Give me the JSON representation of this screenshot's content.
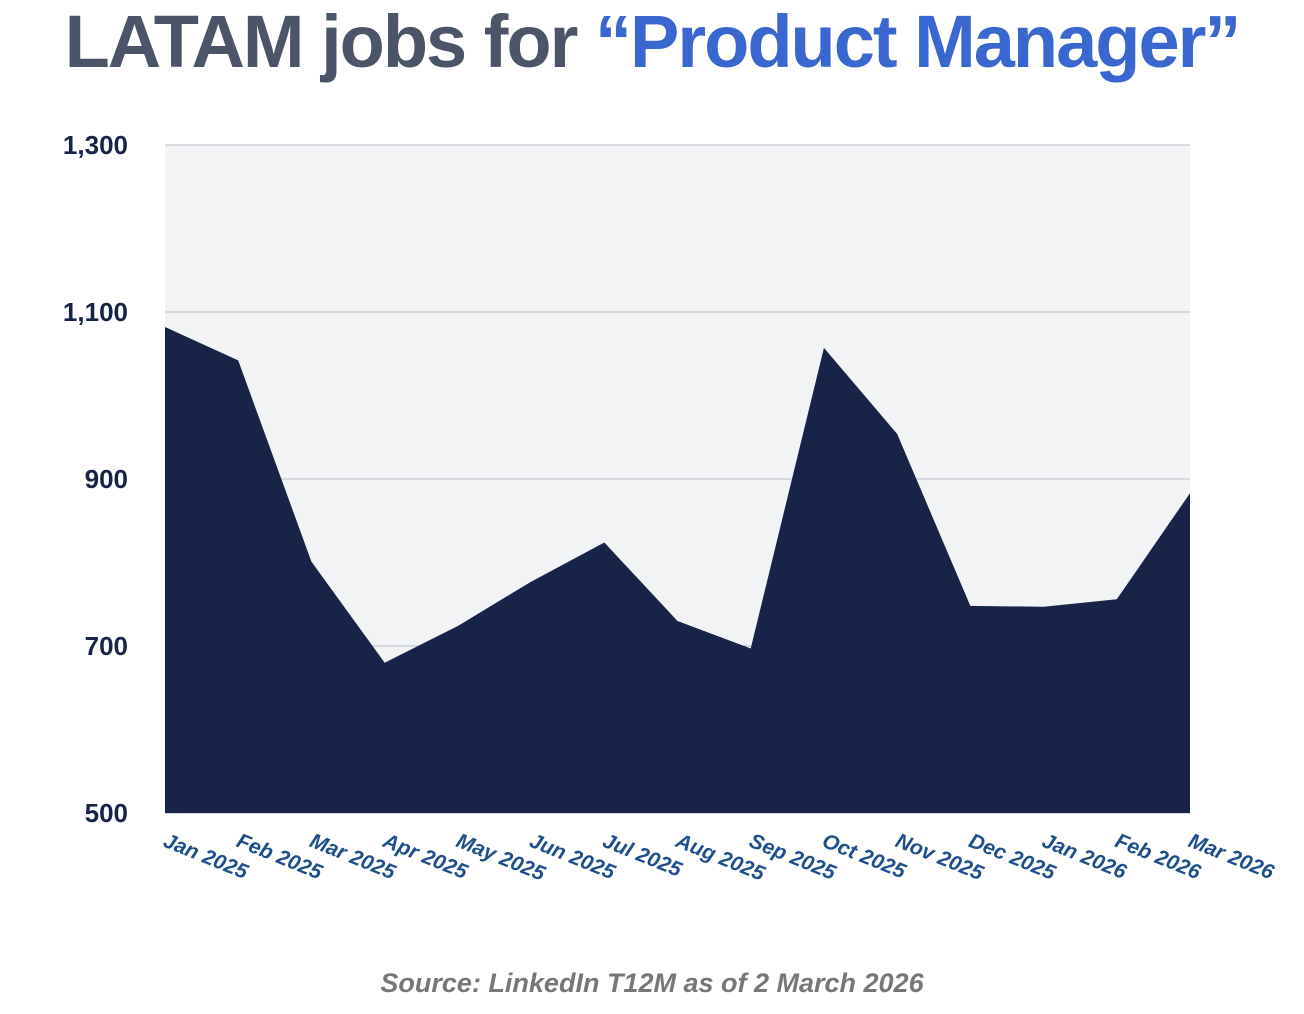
{
  "title": {
    "prefix": "LATAM jobs for ",
    "open_quote": "“",
    "highlight": "Product Manager",
    "close_quote": "”"
  },
  "source": "Source: LinkedIn T12M as of 2 March 2026",
  "colors": {
    "title_text": "#4b5567",
    "title_highlight": "#3a66cf",
    "area_fill": "#172447",
    "plot_background": "#f2f3f5",
    "gridline": "#c4c8cf",
    "y_tick_text": "#172447",
    "x_tick_text": "#1f4e8c",
    "source_text": "#777777"
  },
  "chart_data": {
    "type": "area",
    "title": "LATAM jobs for “Product Manager”",
    "xlabel": "",
    "ylabel": "",
    "categories": [
      "Jan 2025",
      "Feb 2025",
      "Mar 2025",
      "Apr 2025",
      "May 2025",
      "Jun 2025",
      "Jul 2025",
      "Aug 2025",
      "Sep 2025",
      "Oct 2025",
      "Nov 2025",
      "Dec 2025",
      "Jan 2026",
      "Feb 2026",
      "Mar 2026"
    ],
    "values": [
      1082,
      1042,
      801,
      680,
      724,
      777,
      824,
      730,
      697,
      1057,
      954,
      748,
      747,
      756,
      883
    ],
    "ylim": [
      500,
      1300
    ],
    "yticks": [
      500,
      700,
      900,
      1100,
      1300
    ],
    "ytick_labels": [
      "500",
      "700",
      "900",
      "1,100",
      "1,300"
    ],
    "grid": true,
    "legend": "none"
  }
}
